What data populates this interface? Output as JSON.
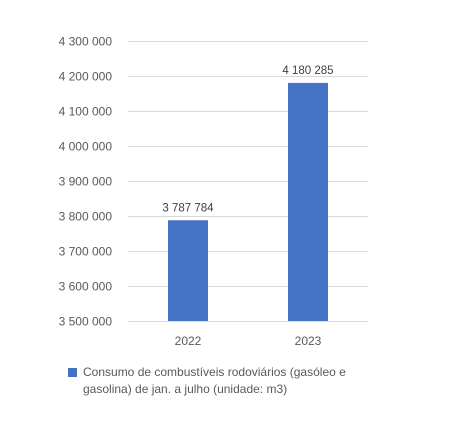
{
  "chart_data": {
    "type": "bar",
    "title": "",
    "xlabel": "",
    "ylabel": "",
    "categories": [
      "2022",
      "2023"
    ],
    "series": [
      {
        "name": "Consumo de combustíveis rodoviários (gasóleo e gasolina) de jan. a julho (unidade: m3)",
        "values": [
          3787784,
          4180285
        ],
        "value_labels": [
          "3 787 784",
          "4 180 285"
        ],
        "color": "#4472C4"
      }
    ],
    "ylim": [
      3500000,
      4300000
    ],
    "y_ticks": [
      3500000,
      3600000,
      3700000,
      3800000,
      3900000,
      4000000,
      4100000,
      4200000,
      4300000
    ],
    "y_tick_labels": [
      "3 500 000",
      "3 600 000",
      "3 700 000",
      "3 800 000",
      "3 900 000",
      "4 000 000",
      "4 100 000",
      "4 200 000",
      "4 300 000"
    ],
    "grid": true,
    "legend_position": "bottom",
    "gridline_color": "#D9D9D9"
  }
}
